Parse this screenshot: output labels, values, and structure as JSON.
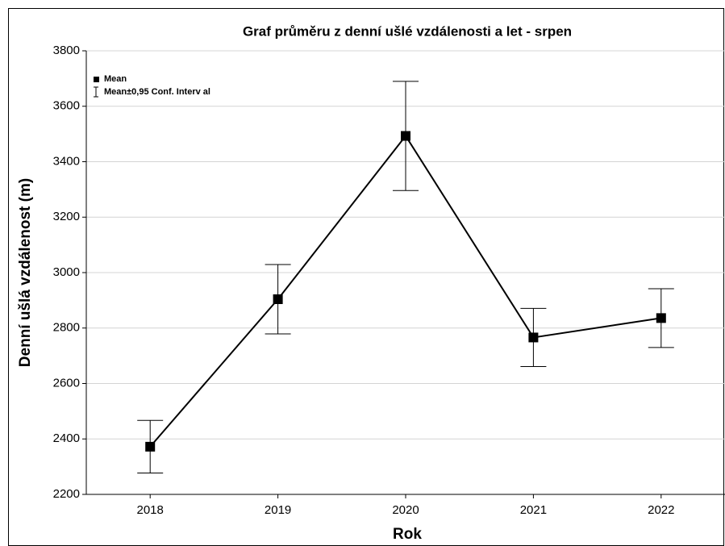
{
  "chart_data": {
    "type": "line",
    "title": "Graf průměru z denní ušlé vzdálenosti a let - srpen",
    "x_label": "Rok",
    "y_label": "Denní ušlá vzdálenost (m)",
    "categories": [
      "2018",
      "2019",
      "2020",
      "2021",
      "2022"
    ],
    "series": [
      {
        "name": "Mean",
        "color": "#000000",
        "values": [
          2372,
          2904,
          3493,
          2766,
          2836
        ],
        "errors": [
          95,
          125,
          197,
          105,
          106
        ],
        "error_name": "Mean±0,95 Conf. Interv al"
      }
    ],
    "ylim": [
      2200,
      3800
    ],
    "yticks": [
      2200,
      2400,
      2600,
      2800,
      3000,
      3200,
      3400,
      3600,
      3800
    ],
    "grid": true,
    "legend": "upper left"
  }
}
